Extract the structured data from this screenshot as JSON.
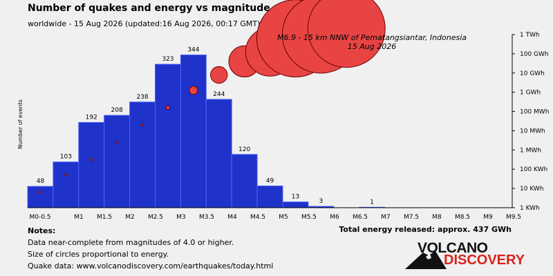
{
  "header": {
    "title": "Number of quakes and energy vs magnitude",
    "subtitle": "worldwide - 15 Aug 2026 (updated:16 Aug 2026, 00:17 GMT)"
  },
  "chart_data": {
    "type": "bar",
    "categories": [
      "M0-0.5",
      "0.5-1",
      "M1-1.5",
      "M1.5-2",
      "M2-2.5",
      "M2.5-3",
      "M3-3.5",
      "M3.5-4",
      "M4-4.5",
      "M4.5-5",
      "M5-5.5",
      "M5.5-6",
      "M6-6.5",
      "M6.5-7",
      "M7-7.5",
      "M7.5-8",
      "M8-8.5",
      "M8.5-9",
      "M9-9.5"
    ],
    "x_tick_labels": [
      "M0-0.5",
      "M1",
      "M1.5",
      "M2",
      "M2.5",
      "M3",
      "M3.5",
      "M4",
      "M4.5",
      "M5",
      "M5.5",
      "M6",
      "M6.5",
      "M7",
      "M7.5",
      "M8",
      "M8.5",
      "M9",
      "M9.5"
    ],
    "counts": [
      48,
      103,
      192,
      208,
      238,
      323,
      344,
      244,
      120,
      49,
      13,
      3,
      0,
      1,
      0,
      0,
      0,
      0,
      0
    ],
    "count_labels": [
      "48",
      "103",
      "192",
      "208",
      "238",
      "323",
      "344",
      "244",
      "120",
      "49",
      "13",
      "3",
      "",
      "1",
      "",
      "",
      "",
      "",
      ""
    ],
    "ylabel": "Number of events",
    "energy_axis_labels": [
      "1 KWh",
      "10 KWh",
      "100 KWh",
      "1 MWh",
      "10 MWh",
      "100 MWh",
      "1 GWh",
      "10 GWh",
      "100 GWh",
      "1 TWh"
    ],
    "energy_log10_kwh": [
      0.8,
      1.7,
      2.5,
      3.4,
      4.3,
      5.2,
      6.1,
      6.9,
      7.6,
      8.1,
      8.8,
      9.0,
      9.3
    ],
    "highlight_quake": {
      "description": "M6.9 - 15 km NNW of Pematangsiantar, Indonesia",
      "date": "15 Aug 2026"
    },
    "colors": {
      "bar": "#1f32c9",
      "bar_edge": "#4a63ff",
      "circle": "#e84444",
      "circle_edge": "#6b0000"
    },
    "grid": false
  },
  "notes": {
    "heading": "Notes:",
    "lines": [
      "Data near-complete from magnitudes of 4.0 or higher.",
      "Size of circles proportional to energy.",
      "Quake data: www.volcanodiscovery.com/earthquakes/today.html"
    ]
  },
  "total_energy": "Total energy released: approx. 437 GWh",
  "logo": {
    "line1": "VOLCANO",
    "line2": "DISCOVERY"
  }
}
